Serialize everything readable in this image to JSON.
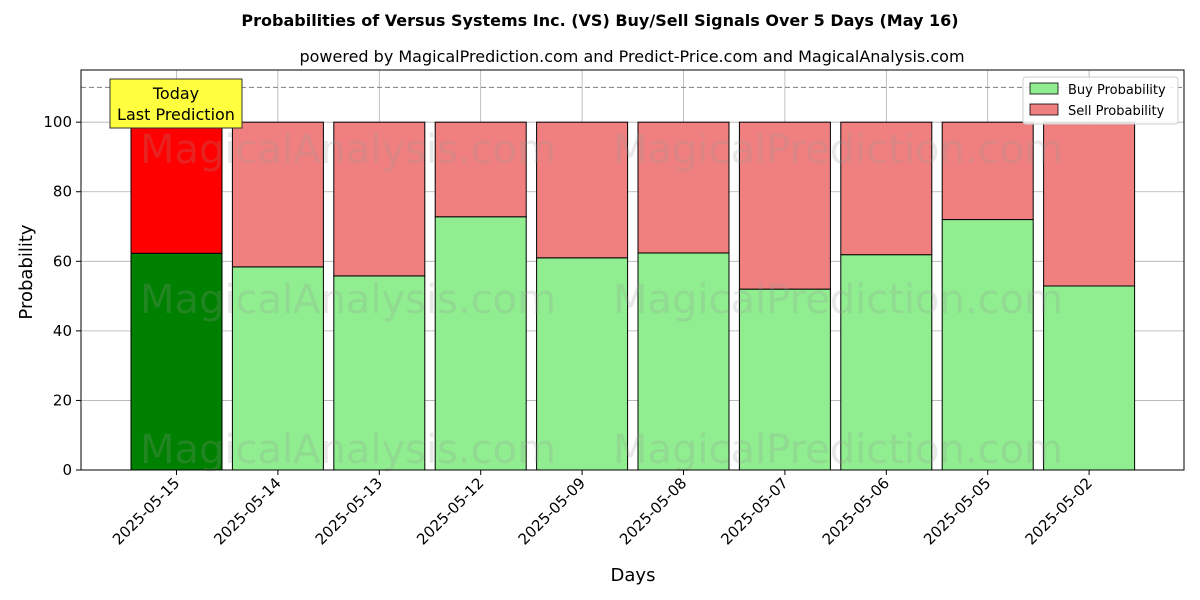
{
  "chart_data": {
    "type": "bar",
    "stacked": true,
    "title": "Probabilities of Versus Systems Inc. (VS) Buy/Sell Signals Over 5 Days (May 16)",
    "subtitle": "powered by MagicalPrediction.com and Predict-Price.com and MagicalAnalysis.com",
    "xlabel": "Days",
    "ylabel": "Probability",
    "ylim": [
      0,
      115
    ],
    "yticks": [
      0,
      20,
      40,
      60,
      80,
      100
    ],
    "grid": true,
    "reference_line": 110,
    "categories": [
      "2025-05-15",
      "2025-05-14",
      "2025-05-13",
      "2025-05-12",
      "2025-05-09",
      "2025-05-08",
      "2025-05-07",
      "2025-05-06",
      "2025-05-05",
      "2025-05-02"
    ],
    "series": [
      {
        "name": "Buy Probability",
        "values": [
          62.3,
          58.4,
          55.8,
          72.8,
          61.0,
          62.4,
          52.0,
          61.9,
          72.0,
          52.9
        ]
      },
      {
        "name": "Sell Probability",
        "values": [
          37.7,
          41.6,
          44.2,
          27.2,
          39.0,
          37.6,
          48.0,
          38.1,
          28.0,
          47.1
        ]
      }
    ],
    "colors": {
      "buy": "#90ee90",
      "sell": "#f08080",
      "buy_highlight": "#008000",
      "sell_highlight": "#ff0000",
      "annotation_bg": "#ffff40"
    },
    "highlight_index": 0,
    "annotation": {
      "line1": "Today",
      "line2": "Last Prediction"
    },
    "legend": {
      "position": "top-right",
      "entries": [
        "Buy Probability",
        "Sell Probability"
      ]
    },
    "watermarks": [
      "MagicalAnalysis.com",
      "MagicalPrediction.com"
    ]
  }
}
